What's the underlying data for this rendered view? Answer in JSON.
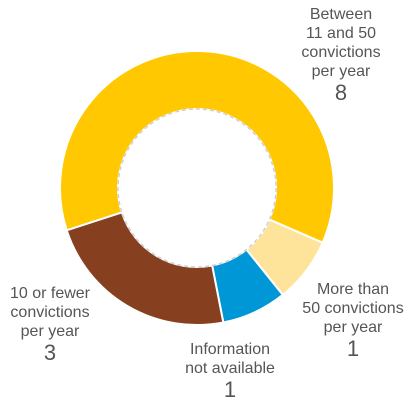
{
  "chart_data": {
    "type": "pie",
    "subtype": "donut",
    "slices": [
      {
        "label_lines": [
          "Between",
          "11 and 50",
          "convictions",
          "per year"
        ],
        "value": 8,
        "color": "#FFC800"
      },
      {
        "label_lines": [
          "More than",
          "50 convictions",
          "per year"
        ],
        "value": 1,
        "color": "#FDE49A"
      },
      {
        "label_lines": [
          "Information",
          "not available"
        ],
        "value": 1,
        "color": "#0097D6"
      },
      {
        "label_lines": [
          "10 or fewer",
          "convictions",
          "per year"
        ],
        "value": 3,
        "color": "#864020"
      }
    ],
    "legend": "none",
    "grid": false
  }
}
